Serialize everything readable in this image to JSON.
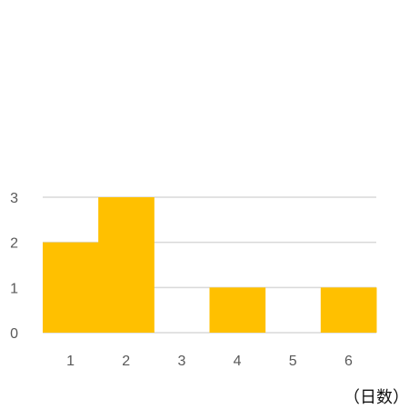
{
  "chart_data": {
    "type": "bar",
    "categories": [
      "1",
      "2",
      "3",
      "4",
      "5",
      "6"
    ],
    "values": [
      2,
      3,
      0,
      1,
      0,
      1
    ],
    "xlabel": "（日数）",
    "ylabel": "",
    "ylim": [
      0,
      3
    ],
    "yticks": [
      "0",
      "1",
      "2",
      "3"
    ],
    "grid": true,
    "bar_color": "#FFC000",
    "grid_color": "#D9D9D9",
    "tick_color": "#595959"
  }
}
